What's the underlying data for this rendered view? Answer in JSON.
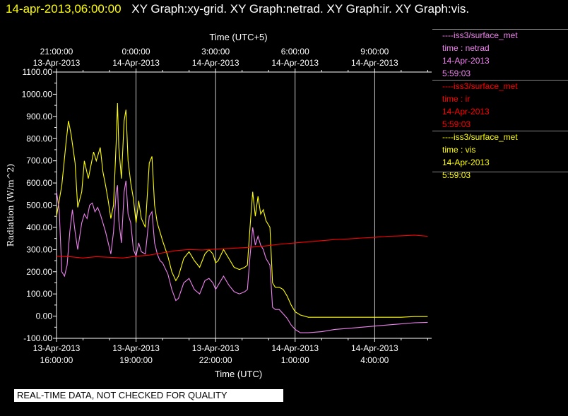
{
  "header": {
    "time": "14-apr-2013,06:00:00",
    "graphs": "XY Graph:xy-grid.  XY Graph:netrad.  XY Graph:ir.  XY Graph:vis."
  },
  "disclaimer": "REAL-TIME DATA, NOT CHECKED FOR QUALITY",
  "chart_data": {
    "type": "line",
    "title": "",
    "xlabel": "Time (UTC)",
    "x2label": "Time (UTC+5)",
    "ylabel": "Radiation  (W/m^2)",
    "x_unit": "hours since 13-Apr-2013 16:00 UTC (plotting axis)",
    "xlim": [
      0,
      14.15
    ],
    "ylim": [
      -100,
      1100
    ],
    "grid": true,
    "y_ticks": [
      "-100.00",
      "0.00",
      "100.00",
      "200.00",
      "300.00",
      "400.00",
      "500.00",
      "600.00",
      "700.00",
      "800.00",
      "900.00",
      "1000.00",
      "1100.00"
    ],
    "x_ticks": [
      {
        "x": 0,
        "date": "13-Apr-2013",
        "time": "16:00:00"
      },
      {
        "x": 3,
        "date": "13-Apr-2013",
        "time": "19:00:00"
      },
      {
        "x": 6,
        "date": "13-Apr-2013",
        "time": "22:00:00"
      },
      {
        "x": 9,
        "date": "14-Apr-2013",
        "time": "1:00:00"
      },
      {
        "x": 12,
        "date": "14-Apr-2013",
        "time": "4:00:00"
      }
    ],
    "x2_ticks": [
      {
        "x": 0,
        "time": "21:00:00",
        "date": "13-Apr-2013"
      },
      {
        "x": 3,
        "time": "0:00:00",
        "date": "14-Apr-2013"
      },
      {
        "x": 6,
        "time": "3:00:00",
        "date": "14-Apr-2013"
      },
      {
        "x": 9,
        "time": "6:00:00",
        "date": "14-Apr-2013"
      },
      {
        "x": 12,
        "time": "9:00:00",
        "date": "14-Apr-2013"
      }
    ],
    "series": [
      {
        "name": "iss3/surface_met time : vis",
        "color": "#ffff00",
        "points": [
          [
            0,
            450
          ],
          [
            0.2,
            590
          ],
          [
            0.35,
            770
          ],
          [
            0.45,
            880
          ],
          [
            0.55,
            820
          ],
          [
            0.7,
            690
          ],
          [
            0.8,
            490
          ],
          [
            0.95,
            560
          ],
          [
            1.05,
            700
          ],
          [
            1.2,
            620
          ],
          [
            1.4,
            740
          ],
          [
            1.5,
            700
          ],
          [
            1.65,
            760
          ],
          [
            1.75,
            650
          ],
          [
            1.85,
            590
          ],
          [
            1.95,
            520
          ],
          [
            2.05,
            440
          ],
          [
            2.15,
            500
          ],
          [
            2.25,
            780
          ],
          [
            2.3,
            960
          ],
          [
            2.35,
            760
          ],
          [
            2.45,
            620
          ],
          [
            2.55,
            880
          ],
          [
            2.62,
            930
          ],
          [
            2.7,
            700
          ],
          [
            2.8,
            600
          ],
          [
            2.9,
            530
          ],
          [
            3.0,
            420
          ],
          [
            3.1,
            520
          ],
          [
            3.2,
            440
          ],
          [
            3.35,
            400
          ],
          [
            3.5,
            690
          ],
          [
            3.6,
            720
          ],
          [
            3.7,
            500
          ],
          [
            3.8,
            420
          ],
          [
            3.9,
            380
          ],
          [
            4.0,
            340
          ],
          [
            4.2,
            270
          ],
          [
            4.35,
            200
          ],
          [
            4.5,
            160
          ],
          [
            4.6,
            180
          ],
          [
            4.8,
            260
          ],
          [
            5.0,
            290
          ],
          [
            5.2,
            250
          ],
          [
            5.4,
            220
          ],
          [
            5.6,
            280
          ],
          [
            5.75,
            300
          ],
          [
            5.9,
            280
          ],
          [
            6.0,
            240
          ],
          [
            6.1,
            250
          ],
          [
            6.3,
            300
          ],
          [
            6.5,
            260
          ],
          [
            6.7,
            220
          ],
          [
            6.9,
            210
          ],
          [
            7.1,
            220
          ],
          [
            7.2,
            230
          ],
          [
            7.3,
            400
          ],
          [
            7.4,
            560
          ],
          [
            7.5,
            450
          ],
          [
            7.6,
            540
          ],
          [
            7.7,
            460
          ],
          [
            7.8,
            480
          ],
          [
            7.9,
            430
          ],
          [
            8.05,
            400
          ],
          [
            8.15,
            150
          ],
          [
            8.25,
            130
          ],
          [
            8.4,
            130
          ],
          [
            8.55,
            120
          ],
          [
            8.7,
            90
          ],
          [
            8.85,
            50
          ],
          [
            9.0,
            20
          ],
          [
            9.2,
            5
          ],
          [
            9.5,
            -5
          ],
          [
            10,
            -5
          ],
          [
            11,
            -5
          ],
          [
            12,
            -5
          ],
          [
            13,
            -5
          ],
          [
            13.5,
            -2
          ],
          [
            14.0,
            -2
          ]
        ]
      },
      {
        "name": "iss3/surface_met time : netrad",
        "color": "#ee82ee",
        "points": [
          [
            0,
            560
          ],
          [
            0.1,
            480
          ],
          [
            0.2,
            200
          ],
          [
            0.3,
            180
          ],
          [
            0.4,
            230
          ],
          [
            0.5,
            380
          ],
          [
            0.6,
            480
          ],
          [
            0.7,
            380
          ],
          [
            0.8,
            300
          ],
          [
            0.95,
            420
          ],
          [
            1.05,
            460
          ],
          [
            1.15,
            440
          ],
          [
            1.25,
            500
          ],
          [
            1.35,
            510
          ],
          [
            1.45,
            470
          ],
          [
            1.55,
            490
          ],
          [
            1.65,
            460
          ],
          [
            1.75,
            420
          ],
          [
            1.85,
            380
          ],
          [
            1.95,
            330
          ],
          [
            2.05,
            280
          ],
          [
            2.15,
            380
          ],
          [
            2.25,
            560
          ],
          [
            2.3,
            590
          ],
          [
            2.35,
            430
          ],
          [
            2.45,
            330
          ],
          [
            2.55,
            560
          ],
          [
            2.62,
            610
          ],
          [
            2.7,
            460
          ],
          [
            2.8,
            420
          ],
          [
            2.9,
            300
          ],
          [
            3.0,
            270
          ],
          [
            3.1,
            330
          ],
          [
            3.2,
            290
          ],
          [
            3.35,
            280
          ],
          [
            3.5,
            450
          ],
          [
            3.6,
            470
          ],
          [
            3.7,
            330
          ],
          [
            3.8,
            280
          ],
          [
            3.9,
            250
          ],
          [
            4.0,
            240
          ],
          [
            4.2,
            190
          ],
          [
            4.35,
            120
          ],
          [
            4.5,
            70
          ],
          [
            4.6,
            80
          ],
          [
            4.8,
            150
          ],
          [
            5.0,
            170
          ],
          [
            5.2,
            120
          ],
          [
            5.4,
            100
          ],
          [
            5.6,
            160
          ],
          [
            5.75,
            170
          ],
          [
            5.9,
            150
          ],
          [
            6.0,
            120
          ],
          [
            6.1,
            140
          ],
          [
            6.3,
            180
          ],
          [
            6.5,
            140
          ],
          [
            6.7,
            110
          ],
          [
            6.9,
            100
          ],
          [
            7.1,
            110
          ],
          [
            7.2,
            120
          ],
          [
            7.3,
            270
          ],
          [
            7.4,
            400
          ],
          [
            7.5,
            320
          ],
          [
            7.6,
            360
          ],
          [
            7.7,
            320
          ],
          [
            7.8,
            300
          ],
          [
            7.9,
            260
          ],
          [
            8.05,
            230
          ],
          [
            8.15,
            40
          ],
          [
            8.25,
            30
          ],
          [
            8.4,
            30
          ],
          [
            8.55,
            10
          ],
          [
            8.7,
            -10
          ],
          [
            8.85,
            -40
          ],
          [
            9.0,
            -60
          ],
          [
            9.2,
            -75
          ],
          [
            9.5,
            -75
          ],
          [
            10,
            -70
          ],
          [
            10.5,
            -60
          ],
          [
            11,
            -55
          ],
          [
            11.5,
            -50
          ],
          [
            12,
            -45
          ],
          [
            12.5,
            -40
          ],
          [
            13,
            -35
          ],
          [
            13.5,
            -30
          ],
          [
            14.0,
            -28
          ]
        ]
      },
      {
        "name": "iss3/surface_met time : ir",
        "color": "#ff0000",
        "points": [
          [
            0,
            270
          ],
          [
            0.5,
            268
          ],
          [
            1.0,
            262
          ],
          [
            1.5,
            268
          ],
          [
            2.0,
            265
          ],
          [
            2.5,
            262
          ],
          [
            3.0,
            270
          ],
          [
            3.5,
            275
          ],
          [
            4.0,
            285
          ],
          [
            4.5,
            295
          ],
          [
            5.0,
            300
          ],
          [
            5.5,
            298
          ],
          [
            6.0,
            302
          ],
          [
            6.5,
            305
          ],
          [
            7.0,
            308
          ],
          [
            7.5,
            312
          ],
          [
            8.0,
            318
          ],
          [
            8.5,
            325
          ],
          [
            9.0,
            330
          ],
          [
            9.5,
            335
          ],
          [
            10.0,
            340
          ],
          [
            10.5,
            345
          ],
          [
            11.0,
            348
          ],
          [
            11.5,
            352
          ],
          [
            12.0,
            355
          ],
          [
            12.5,
            360
          ],
          [
            13.0,
            362
          ],
          [
            13.5,
            365
          ],
          [
            14.0,
            360
          ]
        ]
      }
    ],
    "legend": [
      {
        "source": "iss3/surface_met",
        "var": "time : netrad",
        "date": "14-Apr-2013",
        "time": "5:59:03",
        "color": "#ee82ee"
      },
      {
        "source": "iss3/surface_met",
        "var": "time : ir",
        "date": "14-Apr-2013",
        "time": "5:59:03",
        "color": "#ff0000"
      },
      {
        "source": "iss3/surface_met",
        "var": "time : vis",
        "date": "14-Apr-2013",
        "time": "5:59:03",
        "color": "#ffff00"
      }
    ]
  }
}
